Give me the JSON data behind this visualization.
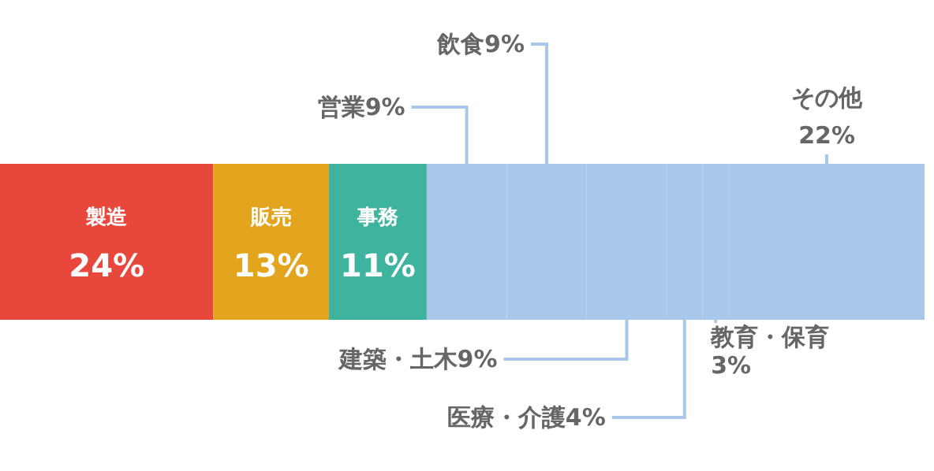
{
  "chart_data": {
    "type": "bar",
    "orientation": "horizontal",
    "stacked": true,
    "categories": [
      null
    ],
    "series": [
      {
        "name": "製造",
        "color": "#e8473b",
        "values": [
          24
        ],
        "value_labels": [
          "24%"
        ]
      },
      {
        "name": "販売",
        "color": "#e3a51d",
        "values": [
          13
        ],
        "value_labels": [
          "13%"
        ]
      },
      {
        "name": "事務",
        "color": "#3eb39d",
        "values": [
          11
        ],
        "value_labels": [
          "11%"
        ]
      },
      {
        "name": "営業",
        "color": "#a9c7e8",
        "values": [
          9
        ],
        "value_labels": [
          "9%"
        ]
      },
      {
        "name": "飲食",
        "color": "#a9c7e8",
        "values": [
          9
        ],
        "value_labels": [
          "9%"
        ]
      },
      {
        "name": "建築・土木",
        "color": "#a9c7e8",
        "values": [
          9
        ],
        "value_labels": [
          "9%"
        ]
      },
      {
        "name": "医療・介護",
        "color": "#a9c7e8",
        "values": [
          4
        ],
        "value_labels": [
          "4%"
        ]
      },
      {
        "name": "教育・保育",
        "color": "#a9c7e8",
        "values": [
          3
        ],
        "value_labels": [
          "3%"
        ]
      },
      {
        "name": "その他",
        "color": "#a9c7e8",
        "values": [
          22
        ],
        "value_labels": [
          "22%"
        ]
      }
    ]
  }
}
